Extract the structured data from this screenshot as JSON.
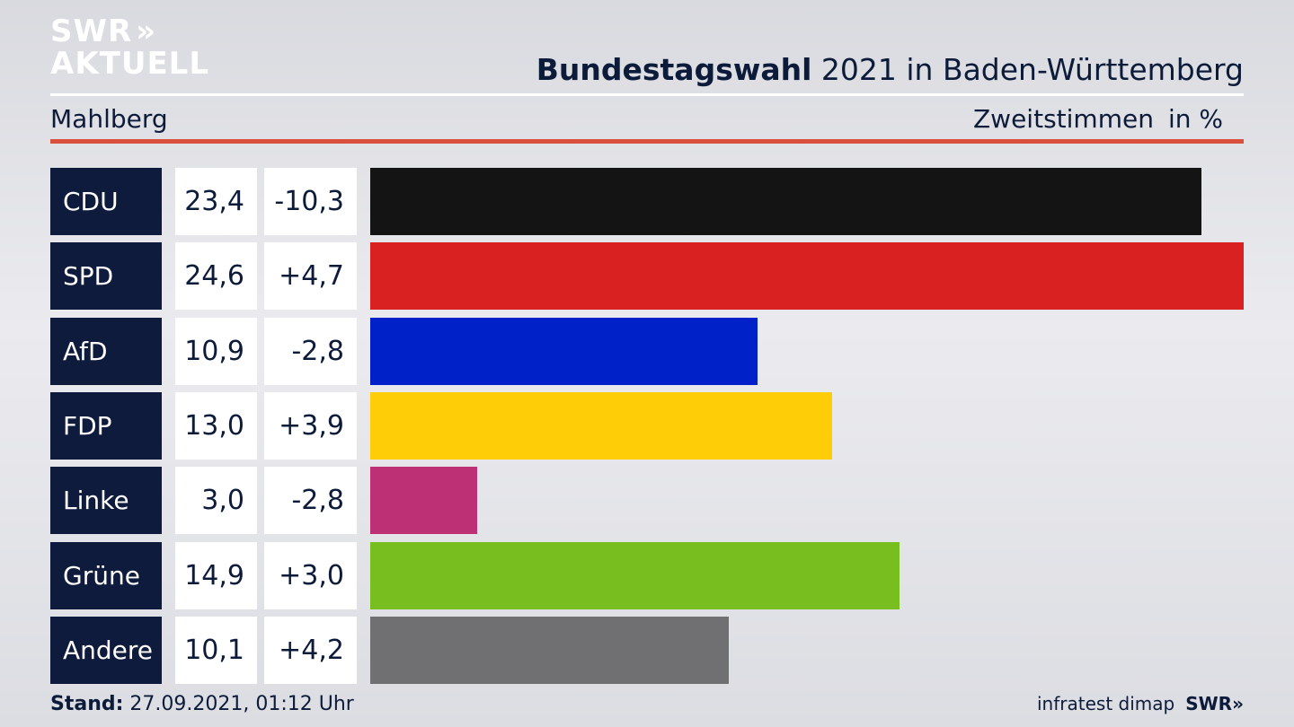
{
  "header": {
    "logo_line1": "SWR",
    "logo_arrows": "»",
    "logo_line2": "AKTUELL",
    "title_bold": "Bundestagswahl",
    "title_rest": " 2021 in Baden-Württemberg",
    "region": "Mahlberg",
    "vote_type": "Zweitstimmen",
    "unit": "in %"
  },
  "footer": {
    "stand_label": "Stand:",
    "stand_value": " 27.09.2021, 01:12 Uhr",
    "source": "infratest dimap",
    "logo": "SWR»"
  },
  "chart_data": {
    "type": "bar",
    "orientation": "horizontal",
    "categories": [
      "CDU",
      "SPD",
      "AfD",
      "FDP",
      "Linke",
      "Grüne",
      "Andere"
    ],
    "values": [
      23.4,
      24.6,
      10.9,
      13.0,
      3.0,
      14.9,
      10.1
    ],
    "value_labels": [
      "23,4",
      "24,6",
      "10,9",
      "13,0",
      "3,0",
      "14,9",
      "10,1"
    ],
    "diff_labels": [
      "-10,3",
      "+4,7",
      "-2,8",
      "+3,9",
      "-2,8",
      "+3,0",
      "+4,2"
    ],
    "colors": [
      "#141414",
      "#d82120",
      "#0020c8",
      "#ffcc08",
      "#be3075",
      "#78be1e",
      "#707073"
    ],
    "xlim": [
      0,
      24.6
    ]
  }
}
